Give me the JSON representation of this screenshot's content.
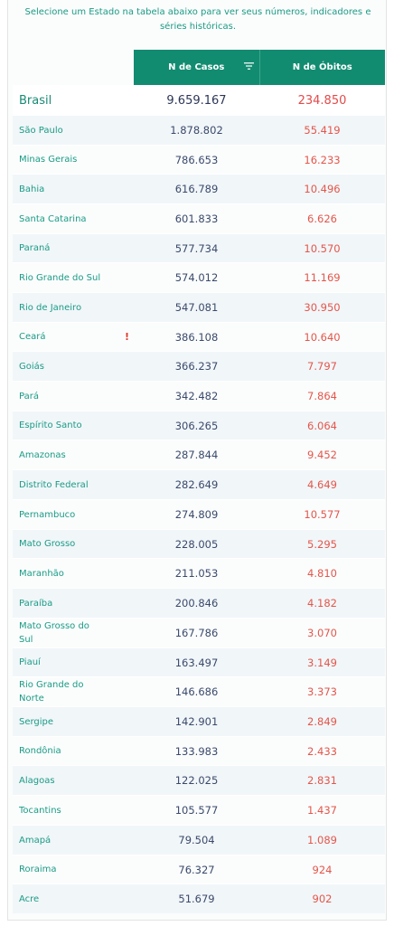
{
  "intro": "Selecione um Estado na tabela abaixo para ver seus números, indicadores e séries históricas.",
  "header": {
    "cases_label": "N de Casos",
    "deaths_label": "N de Óbitos",
    "filter_icon": "filter-icon"
  },
  "brasil": {
    "name": "Brasil",
    "cases": "9.659.167",
    "deaths": "234.850"
  },
  "alert_icon": "!",
  "states": [
    {
      "name": "São Paulo",
      "cases": "1.878.802",
      "deaths": "55.419"
    },
    {
      "name": "Minas Gerais",
      "cases": "786.653",
      "deaths": "16.233"
    },
    {
      "name": "Bahia",
      "cases": "616.789",
      "deaths": "10.496"
    },
    {
      "name": "Santa Catarina",
      "cases": "601.833",
      "deaths": "6.626"
    },
    {
      "name": "Paraná",
      "cases": "577.734",
      "deaths": "10.570"
    },
    {
      "name": "Rio Grande do Sul",
      "cases": "574.012",
      "deaths": "11.169"
    },
    {
      "name": "Rio de Janeiro",
      "cases": "547.081",
      "deaths": "30.950"
    },
    {
      "name": "Ceará",
      "cases": "386.108",
      "deaths": "10.640"
    },
    {
      "name": "Goiás",
      "cases": "366.237",
      "deaths": "7.797"
    },
    {
      "name": "Pará",
      "cases": "342.482",
      "deaths": "7.864"
    },
    {
      "name": "Espírito Santo",
      "cases": "306.265",
      "deaths": "6.064"
    },
    {
      "name": "Amazonas",
      "cases": "287.844",
      "deaths": "9.452"
    },
    {
      "name": "Distrito Federal",
      "cases": "282.649",
      "deaths": "4.649"
    },
    {
      "name": "Pernambuco",
      "cases": "274.809",
      "deaths": "10.577"
    },
    {
      "name": "Mato Grosso",
      "cases": "228.005",
      "deaths": "5.295"
    },
    {
      "name": "Maranhão",
      "cases": "211.053",
      "deaths": "4.810"
    },
    {
      "name": "Paraíba",
      "cases": "200.846",
      "deaths": "4.182"
    },
    {
      "name": "Mato Grosso do Sul",
      "cases": "167.786",
      "deaths": "3.070"
    },
    {
      "name": "Piauí",
      "cases": "163.497",
      "deaths": "3.149"
    },
    {
      "name": "Rio Grande do Norte",
      "cases": "146.686",
      "deaths": "3.373"
    },
    {
      "name": "Sergipe",
      "cases": "142.901",
      "deaths": "2.849"
    },
    {
      "name": "Rondônia",
      "cases": "133.983",
      "deaths": "2.433"
    },
    {
      "name": "Alagoas",
      "cases": "122.025",
      "deaths": "2.831"
    },
    {
      "name": "Tocantins",
      "cases": "105.577",
      "deaths": "1.437"
    },
    {
      "name": "Amapá",
      "cases": "79.504",
      "deaths": "1.089"
    },
    {
      "name": "Roraima",
      "cases": "76.327",
      "deaths": "924"
    },
    {
      "name": "Acre",
      "cases": "51.679",
      "deaths": "902"
    }
  ]
}
